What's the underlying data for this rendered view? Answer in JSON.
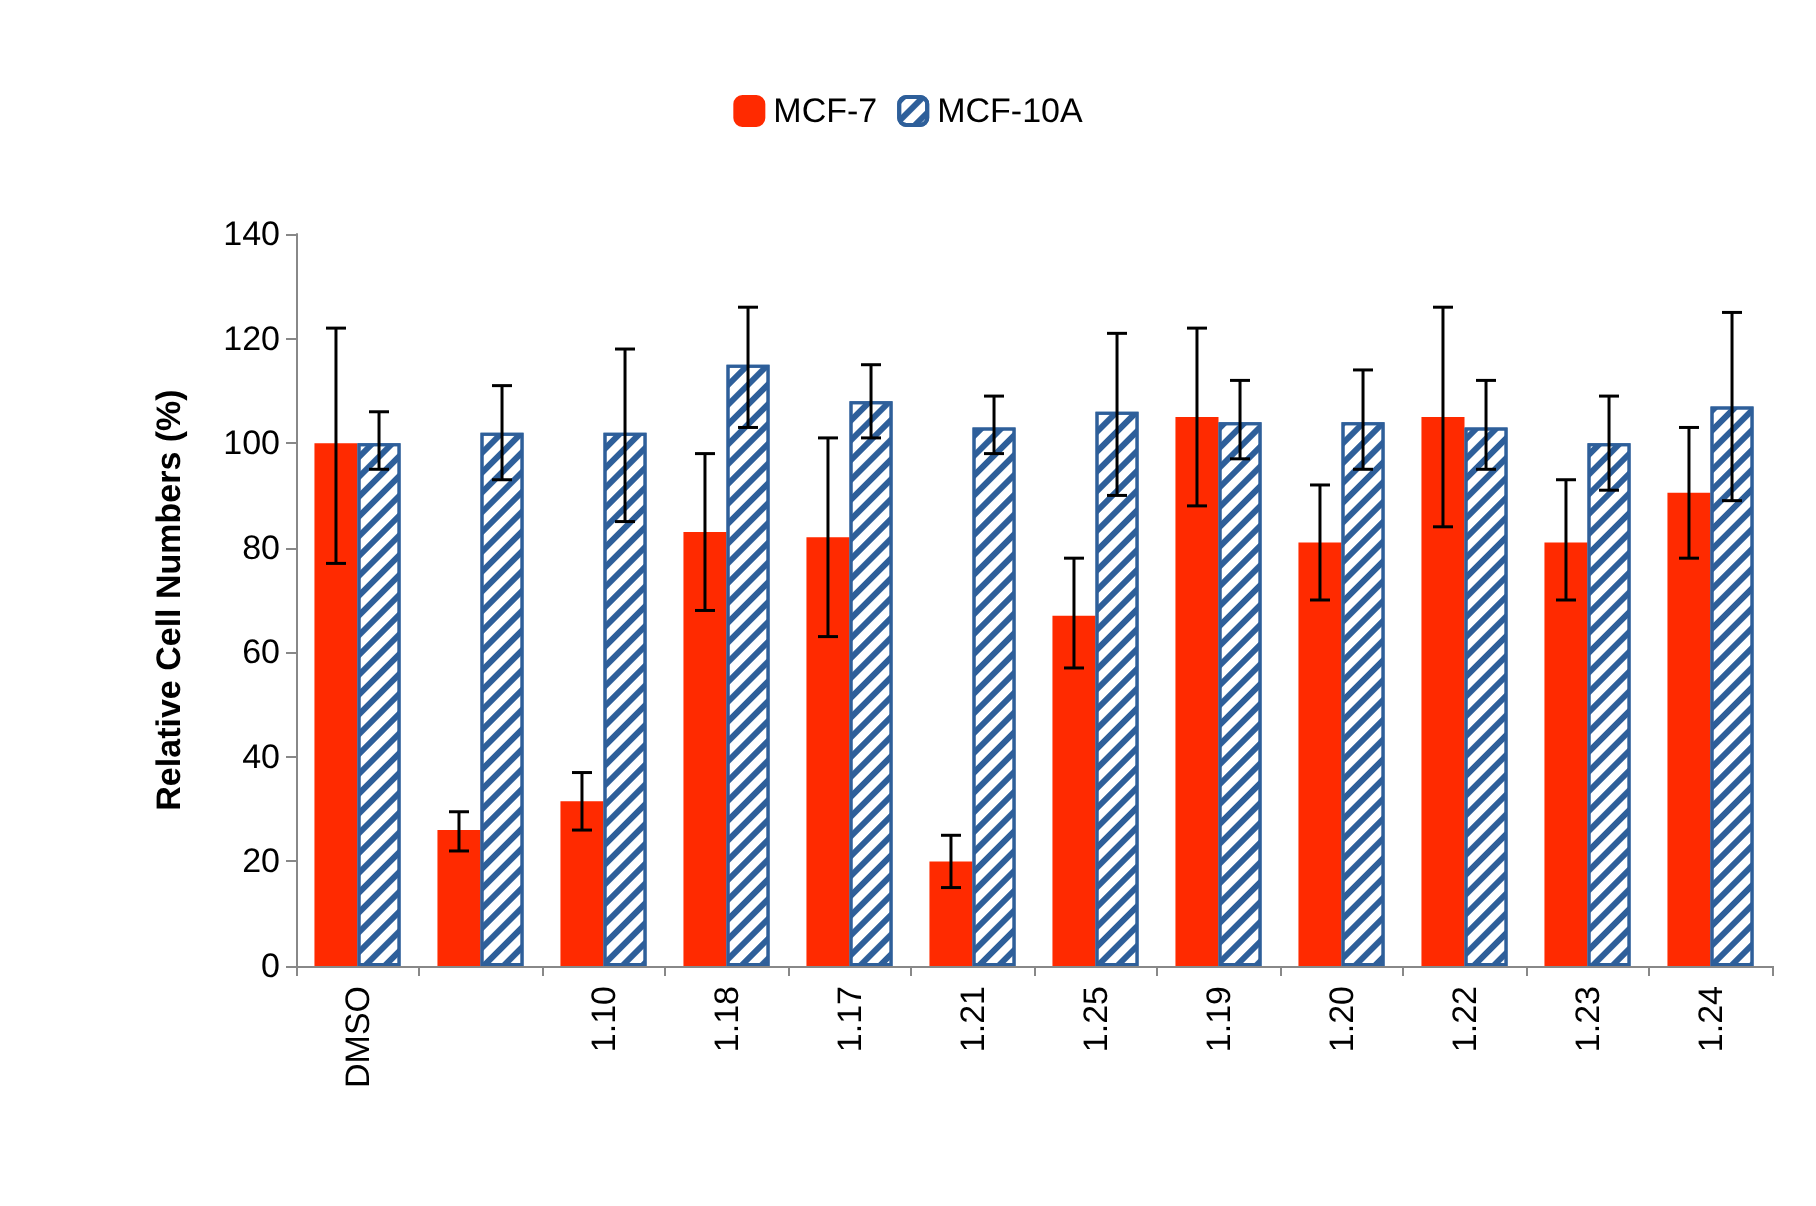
{
  "chart_data": {
    "type": "bar",
    "ylabel": "Relative Cell Numbers (%)",
    "categories": [
      "DMSO",
      null,
      "1.10",
      "1.18",
      "1.17",
      "1.21",
      "1.25",
      "1.19",
      "1.20",
      "1.22",
      "1.23",
      "1.24"
    ],
    "series": [
      {
        "name": "MCF-7",
        "color": "#ff2a00",
        "values": [
          100,
          26,
          31.5,
          83,
          82,
          20,
          67,
          105,
          81,
          105,
          81,
          90.5
        ],
        "errors": [
          [
            77,
            122
          ],
          [
            22,
            29.5
          ],
          [
            26,
            37
          ],
          [
            68,
            98
          ],
          [
            63,
            101
          ],
          [
            15,
            25
          ],
          [
            57,
            78
          ],
          [
            88,
            122
          ],
          [
            70,
            92
          ],
          [
            84,
            126
          ],
          [
            70,
            93
          ],
          [
            78,
            103
          ]
        ]
      },
      {
        "name": "MCF-10A",
        "color": "#2e5f9a",
        "values": [
          100,
          102,
          102,
          115,
          108,
          103,
          106,
          104,
          104,
          103,
          100,
          107
        ],
        "errors": [
          [
            95,
            106
          ],
          [
            93,
            111
          ],
          [
            85,
            118
          ],
          [
            103,
            126
          ],
          [
            101,
            115
          ],
          [
            98,
            109
          ],
          [
            90,
            121
          ],
          [
            97,
            112
          ],
          [
            95,
            114
          ],
          [
            95,
            112
          ],
          [
            91,
            109
          ],
          [
            89,
            125
          ]
        ]
      }
    ],
    "ylim": [
      0,
      140
    ],
    "yticks": [
      0,
      20,
      40,
      60,
      80,
      100,
      120,
      140
    ],
    "grid": false,
    "legend": "top"
  }
}
